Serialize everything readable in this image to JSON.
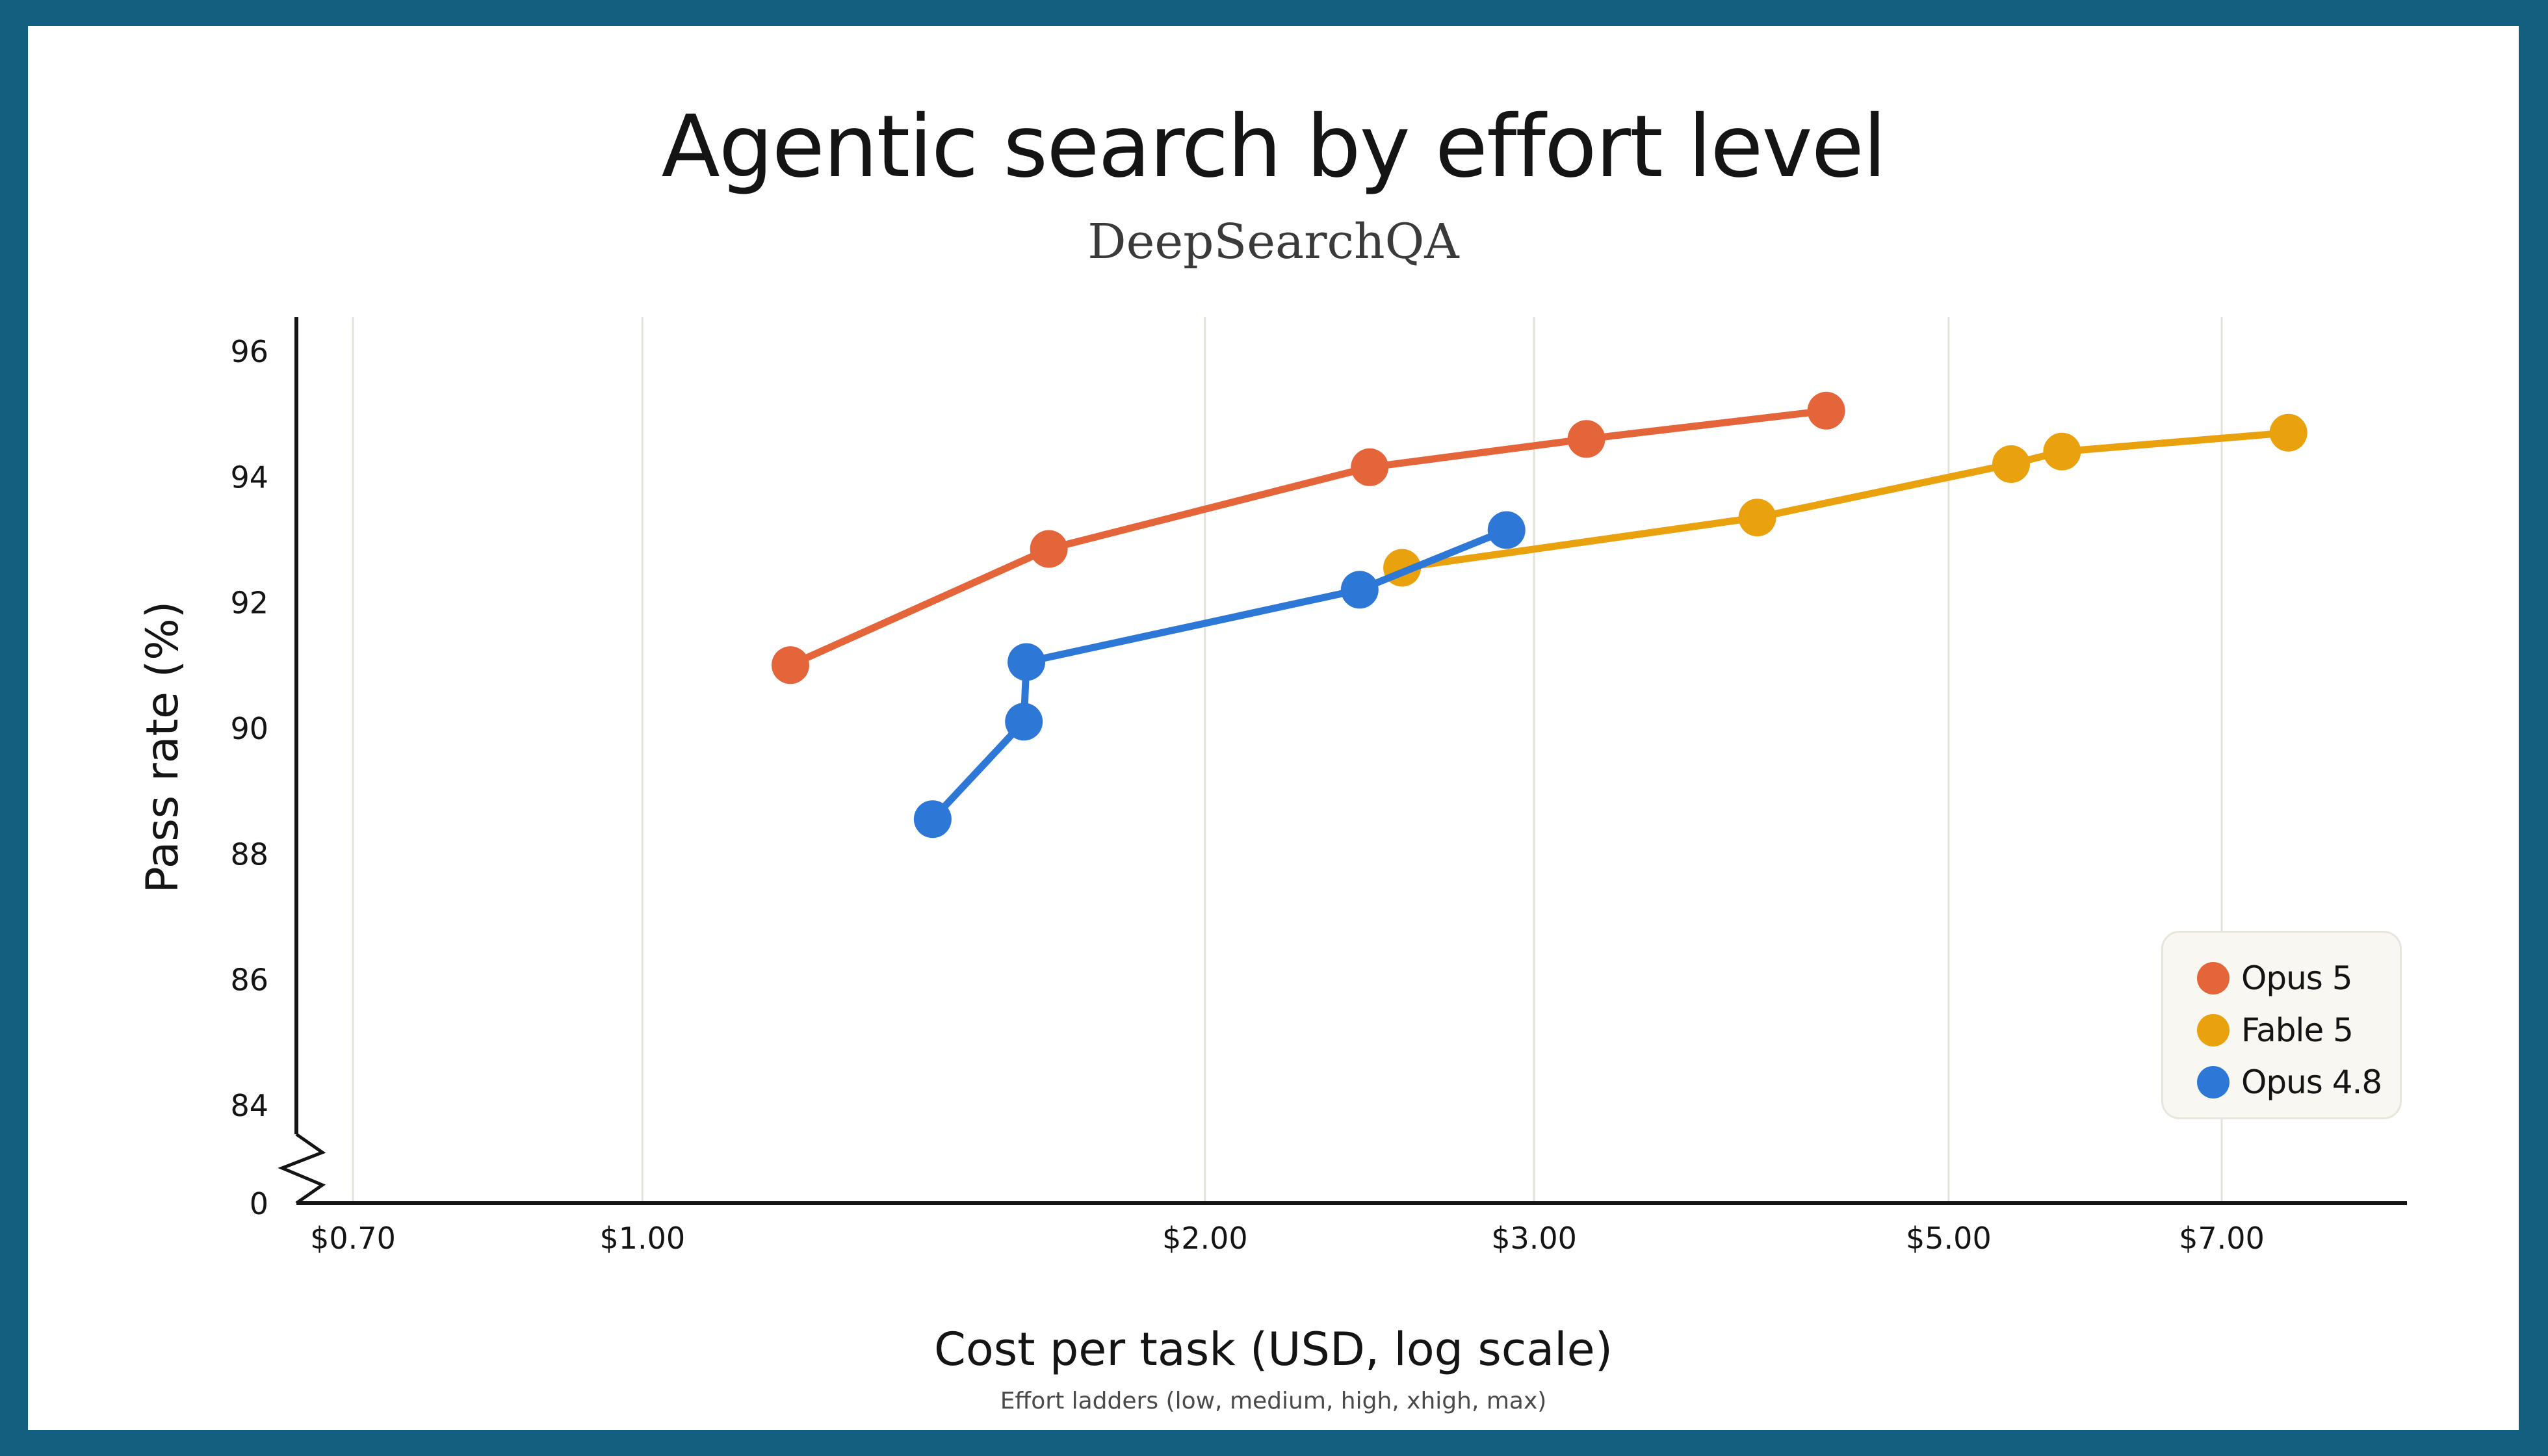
{
  "chart_data": {
    "type": "line",
    "title": "Agentic search by effort level",
    "subtitle": "DeepSearchQA",
    "xlabel": "Cost per task (USD, log scale)",
    "ylabel": "Pass rate (%)",
    "note": "Effort ladders (low, medium, high, xhigh, max)",
    "x_scale": "log",
    "xlim": [
      0.68,
      10.5
    ],
    "ylim": [
      82.5,
      96.5
    ],
    "y_axis_break": true,
    "x_ticks": [
      {
        "value": 0.7,
        "label": "$0.70"
      },
      {
        "value": 1.0,
        "label": "$1.00"
      },
      {
        "value": 2.0,
        "label": "$2.00"
      },
      {
        "value": 3.0,
        "label": "$3.00"
      },
      {
        "value": 5.0,
        "label": "$5.00"
      },
      {
        "value": 7.0,
        "label": "$7.00"
      }
    ],
    "y_ticks": [
      {
        "value": 84,
        "label": "84"
      },
      {
        "value": 86,
        "label": "86"
      },
      {
        "value": 88,
        "label": "88"
      },
      {
        "value": 90,
        "label": "90"
      },
      {
        "value": 92,
        "label": "92"
      },
      {
        "value": 94,
        "label": "94"
      },
      {
        "value": 96,
        "label": "96"
      }
    ],
    "y_break_label": "0",
    "grid": {
      "vertical": true,
      "horizontal": false
    },
    "legend_position": "bottom-right",
    "series": [
      {
        "name": "Opus 5",
        "color": "#e5653a",
        "points": [
          {
            "x": 1.2,
            "y": 91.0
          },
          {
            "x": 1.65,
            "y": 92.85
          },
          {
            "x": 2.45,
            "y": 94.15
          },
          {
            "x": 3.2,
            "y": 94.6
          },
          {
            "x": 4.3,
            "y": 95.05
          }
        ]
      },
      {
        "name": "Fable 5",
        "color": "#eaa10e",
        "points": [
          {
            "x": 2.55,
            "y": 92.55
          },
          {
            "x": 3.95,
            "y": 93.35
          },
          {
            "x": 5.4,
            "y": 94.2
          },
          {
            "x": 5.75,
            "y": 94.4
          },
          {
            "x": 7.6,
            "y": 94.7
          }
        ]
      },
      {
        "name": "Opus 4.8",
        "color": "#2d78d6",
        "points": [
          {
            "x": 1.43,
            "y": 88.55
          },
          {
            "x": 1.6,
            "y": 90.1
          },
          {
            "x": 1.605,
            "y": 91.05
          },
          {
            "x": 2.42,
            "y": 92.2
          },
          {
            "x": 2.9,
            "y": 93.15
          }
        ]
      }
    ]
  }
}
